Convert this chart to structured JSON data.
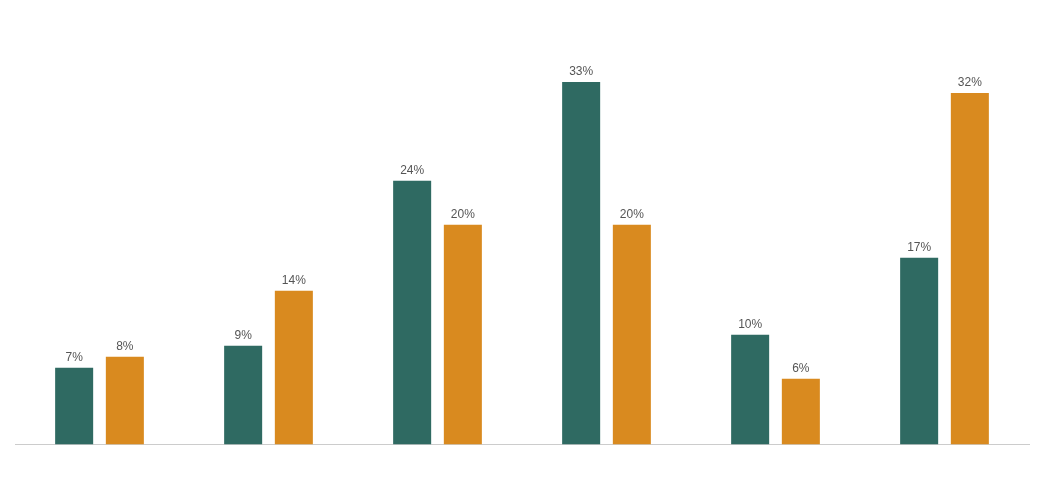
{
  "chart_data": {
    "type": "bar",
    "categories": [
      null,
      null,
      null,
      null,
      null,
      null
    ],
    "series": [
      {
        "color": "#2f6a62",
        "values": [
          7,
          9,
          24,
          33,
          10,
          17
        ],
        "value_labels": [
          "7%",
          "9%",
          "24%",
          "33%",
          "10%",
          "17%"
        ]
      },
      {
        "color": "#d98a1f",
        "values": [
          8,
          14,
          20,
          20,
          6,
          32
        ],
        "value_labels": [
          "8%",
          "14%",
          "20%",
          "20%",
          "6%",
          "32%"
        ]
      }
    ],
    "grid": false,
    "legend": false
  }
}
